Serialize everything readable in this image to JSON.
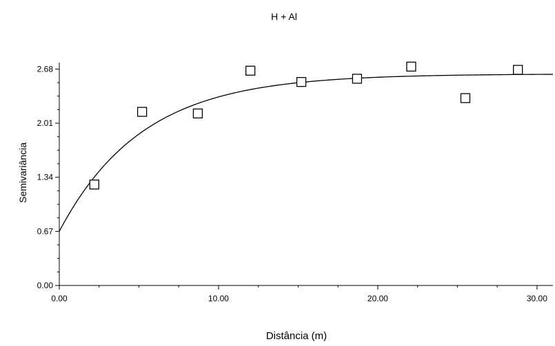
{
  "chart_data": {
    "type": "scatter",
    "title": "H + Al",
    "xlabel": "Distância (m)",
    "ylabel": "Semivariância",
    "xlim": [
      0,
      31
    ],
    "ylim": [
      0,
      2.76
    ],
    "x_ticks": [
      "0.00",
      "10.00",
      "20.00",
      "30.00"
    ],
    "y_ticks": [
      "0.00",
      "0.67",
      "1.34",
      "2.01",
      "2.68"
    ],
    "grid": false,
    "legend": "none",
    "points": [
      {
        "x": 2.2,
        "y": 1.25
      },
      {
        "x": 5.2,
        "y": 2.15
      },
      {
        "x": 8.7,
        "y": 2.13
      },
      {
        "x": 12.0,
        "y": 2.66
      },
      {
        "x": 15.2,
        "y": 2.52
      },
      {
        "x": 18.7,
        "y": 2.56
      },
      {
        "x": 22.1,
        "y": 2.71
      },
      {
        "x": 25.5,
        "y": 2.32
      },
      {
        "x": 28.8,
        "y": 2.67
      }
    ],
    "model_curve": {
      "kind": "exponential",
      "nugget": 0.67,
      "sill": 2.62,
      "range_param": 5.2
    },
    "colors": {
      "axis": "#000000",
      "marker_stroke": "#000000",
      "marker_fill": "#ffffff",
      "curve": "#000000"
    }
  }
}
